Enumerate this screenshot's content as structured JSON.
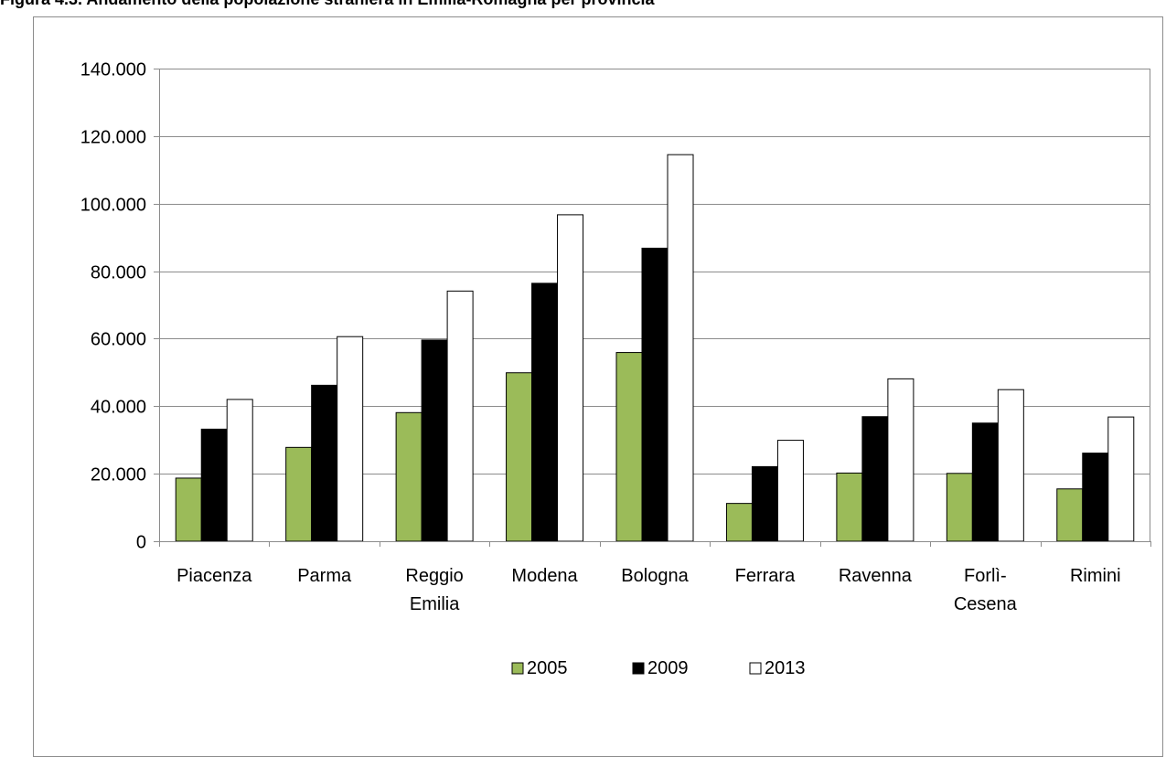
{
  "caption": "Figura 4.3. Andamento della popolazione straniera in Emilia-Romagna per provincia",
  "chart_data": {
    "type": "bar",
    "categories": [
      [
        "Piacenza"
      ],
      [
        "Parma"
      ],
      [
        "Reggio",
        "Emilia"
      ],
      [
        "Modena"
      ],
      [
        "Bologna"
      ],
      [
        "Ferrara"
      ],
      [
        "Ravenna"
      ],
      [
        "Forlì-",
        "Cesena"
      ],
      [
        "Rimini"
      ]
    ],
    "series": [
      {
        "name": "2005",
        "color": "#9bbb59",
        "values": [
          18700,
          27800,
          38100,
          49900,
          55900,
          11200,
          20200,
          20100,
          15500
        ]
      },
      {
        "name": "2009",
        "color": "#000000",
        "values": [
          33200,
          46200,
          59600,
          76400,
          86800,
          22100,
          36900,
          35000,
          26100
        ]
      },
      {
        "name": "2013",
        "color": "#ffffff",
        "values": [
          42000,
          60600,
          74100,
          96700,
          114500,
          29900,
          48100,
          44900,
          36800
        ]
      }
    ],
    "ylim": [
      0,
      140000
    ],
    "yticks": [
      0,
      20000,
      40000,
      60000,
      80000,
      100000,
      120000,
      140000
    ],
    "ytick_labels": [
      "0",
      "20.000",
      "40.000",
      "60.000",
      "80.000",
      "100.000",
      "120.000",
      "140.000"
    ],
    "grid": true,
    "legend_position": "bottom"
  }
}
